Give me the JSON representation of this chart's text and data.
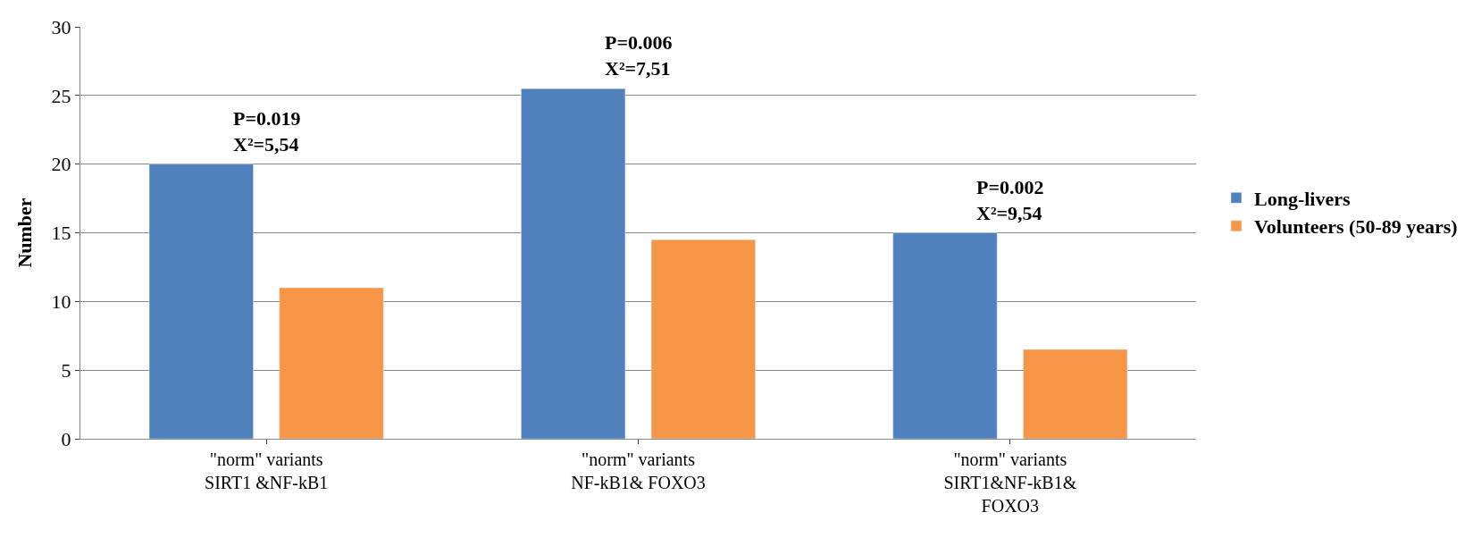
{
  "chart_data": {
    "type": "bar",
    "ylabel": "Number",
    "categories": [
      "\"norm\" variants\nSIRT1 &NF-kB1",
      "\"norm\" variants\nNF-kB1& FOXO3",
      "\"norm\" variants\nSIRT1&NF-kB1&\nFOXO3"
    ],
    "series": [
      {
        "name": "Long-livers",
        "color": "#4f81bd",
        "values": [
          20,
          25.5,
          15
        ]
      },
      {
        "name": "Volunteers (50-89 years)",
        "color": "#f79646",
        "values": [
          11,
          14.5,
          6.5
        ]
      }
    ],
    "ylim": [
      0,
      30
    ],
    "yticks": [
      0,
      5,
      10,
      15,
      20,
      25,
      30
    ],
    "grid": "y",
    "legend": "right",
    "annotations": [
      "P=0.019\nX²=5,54",
      "P=0.006\nX²=7,51",
      "P=0.002\nX²=9,54"
    ]
  }
}
